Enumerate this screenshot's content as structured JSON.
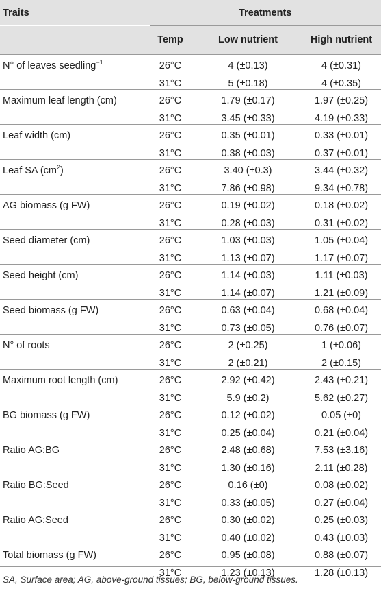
{
  "table": {
    "header": {
      "traits": "Traits",
      "treatments": "Treatments",
      "temp": "Temp",
      "low": "Low nutrient",
      "high": "High nutrient"
    },
    "rows": [
      {
        "trait": "N° of leaves seedling",
        "trait_sup": "−1",
        "entries": [
          {
            "temp": "26°C",
            "low": "4 (±0.13)",
            "high": "4 (±0.31)"
          },
          {
            "temp": "31°C",
            "low": "5 (±0.18)",
            "high": "4 (±0.35)"
          }
        ]
      },
      {
        "trait": "Maximum leaf length (cm)",
        "entries": [
          {
            "temp": "26°C",
            "low": "1.79 (±0.17)",
            "high": "1.97 (±0.25)"
          },
          {
            "temp": "31°C",
            "low": "3.45 (±0.33)",
            "high": "4.19 (±0.33)"
          }
        ]
      },
      {
        "trait": "Leaf width (cm)",
        "entries": [
          {
            "temp": "26°C",
            "low": "0.35 (±0.01)",
            "high": "0.33 (±0.01)"
          },
          {
            "temp": "31°C",
            "low": "0.38 (±0.03)",
            "high": "0.37 (±0.01)"
          }
        ]
      },
      {
        "trait": "Leaf SA (cm",
        "trait_sup": "2",
        "trait_after": ")",
        "entries": [
          {
            "temp": "26°C",
            "low": "3.40 (±0.3)",
            "high": "3.44 (±0.32)"
          },
          {
            "temp": "31°C",
            "low": "7.86 (±0.98)",
            "high": "9.34 (±0.78)"
          }
        ]
      },
      {
        "trait": "AG biomass (g FW)",
        "entries": [
          {
            "temp": "26°C",
            "low": "0.19 (±0.02)",
            "high": "0.18 (±0.02)"
          },
          {
            "temp": "31°C",
            "low": "0.28 (±0.03)",
            "high": "0.31 (±0.02)"
          }
        ]
      },
      {
        "trait": "Seed diameter (cm)",
        "entries": [
          {
            "temp": "26°C",
            "low": "1.03 (±0.03)",
            "high": "1.05 (±0.04)"
          },
          {
            "temp": "31°C",
            "low": "1.13 (±0.07)",
            "high": "1.17 (±0.07)"
          }
        ]
      },
      {
        "trait": "Seed height (cm)",
        "entries": [
          {
            "temp": "26°C",
            "low": "1.14 (±0.03)",
            "high": "1.11 (±0.03)"
          },
          {
            "temp": "31°C",
            "low": "1.14 (±0.07)",
            "high": "1.21 (±0.09)"
          }
        ]
      },
      {
        "trait": "Seed biomass (g FW)",
        "entries": [
          {
            "temp": "26°C",
            "low": "0.63 (±0.04)",
            "high": "0.68 (±0.04)"
          },
          {
            "temp": "31°C",
            "low": "0.73 (±0.05)",
            "high": "0.76 (±0.07)"
          }
        ]
      },
      {
        "trait": "N° of roots",
        "entries": [
          {
            "temp": "26°C",
            "low": "2 (±0.25)",
            "high": "1 (±0.06)"
          },
          {
            "temp": "31°C",
            "low": "2 (±0.21)",
            "high": "2 (±0.15)"
          }
        ]
      },
      {
        "trait": "Maximum root length (cm)",
        "entries": [
          {
            "temp": "26°C",
            "low": "2.92 (±0.42)",
            "high": "2.43 (±0.21)"
          },
          {
            "temp": "31°C",
            "low": "5.9 (±0.2)",
            "high": "5.62 (±0.27)"
          }
        ]
      },
      {
        "trait": "BG biomass (g FW)",
        "entries": [
          {
            "temp": "26°C",
            "low": "0.12 (±0.02)",
            "high": "0.05 (±0)"
          },
          {
            "temp": "31°C",
            "low": "0.25 (±0.04)",
            "high": "0.21 (±0.04)"
          }
        ]
      },
      {
        "trait": "Ratio AG:BG",
        "entries": [
          {
            "temp": "26°C",
            "low": "2.48 (±0.68)",
            "high": "7.53 (±3.16)"
          },
          {
            "temp": "31°C",
            "low": "1.30 (±0.16)",
            "high": "2.11 (±0.28)"
          }
        ]
      },
      {
        "trait": "Ratio BG:Seed",
        "entries": [
          {
            "temp": "26°C",
            "low": "0.16 (±0)",
            "high": "0.08 (±0.02)"
          },
          {
            "temp": "31°C",
            "low": "0.33 (±0.05)",
            "high": "0.27 (±0.04)"
          }
        ]
      },
      {
        "trait": "Ratio AG:Seed",
        "entries": [
          {
            "temp": "26°C",
            "low": "0.30 (±0.02)",
            "high": "0.25 (±0.03)"
          },
          {
            "temp": "31°C",
            "low": "0.40 (±0.02)",
            "high": "0.43 (±0.03)"
          }
        ]
      },
      {
        "trait": "Total biomass (g FW)",
        "entries": [
          {
            "temp": "26°C",
            "low": "0.95 (±0.08)",
            "high": "0.88 (±0.07)"
          },
          {
            "temp": "31°C",
            "low": "1.23 (±0.13)",
            "high": "1.28 (±0.13)"
          }
        ]
      }
    ]
  },
  "footnote": "SA, Surface area; AG, above-ground tissues; BG, below-ground tissues."
}
